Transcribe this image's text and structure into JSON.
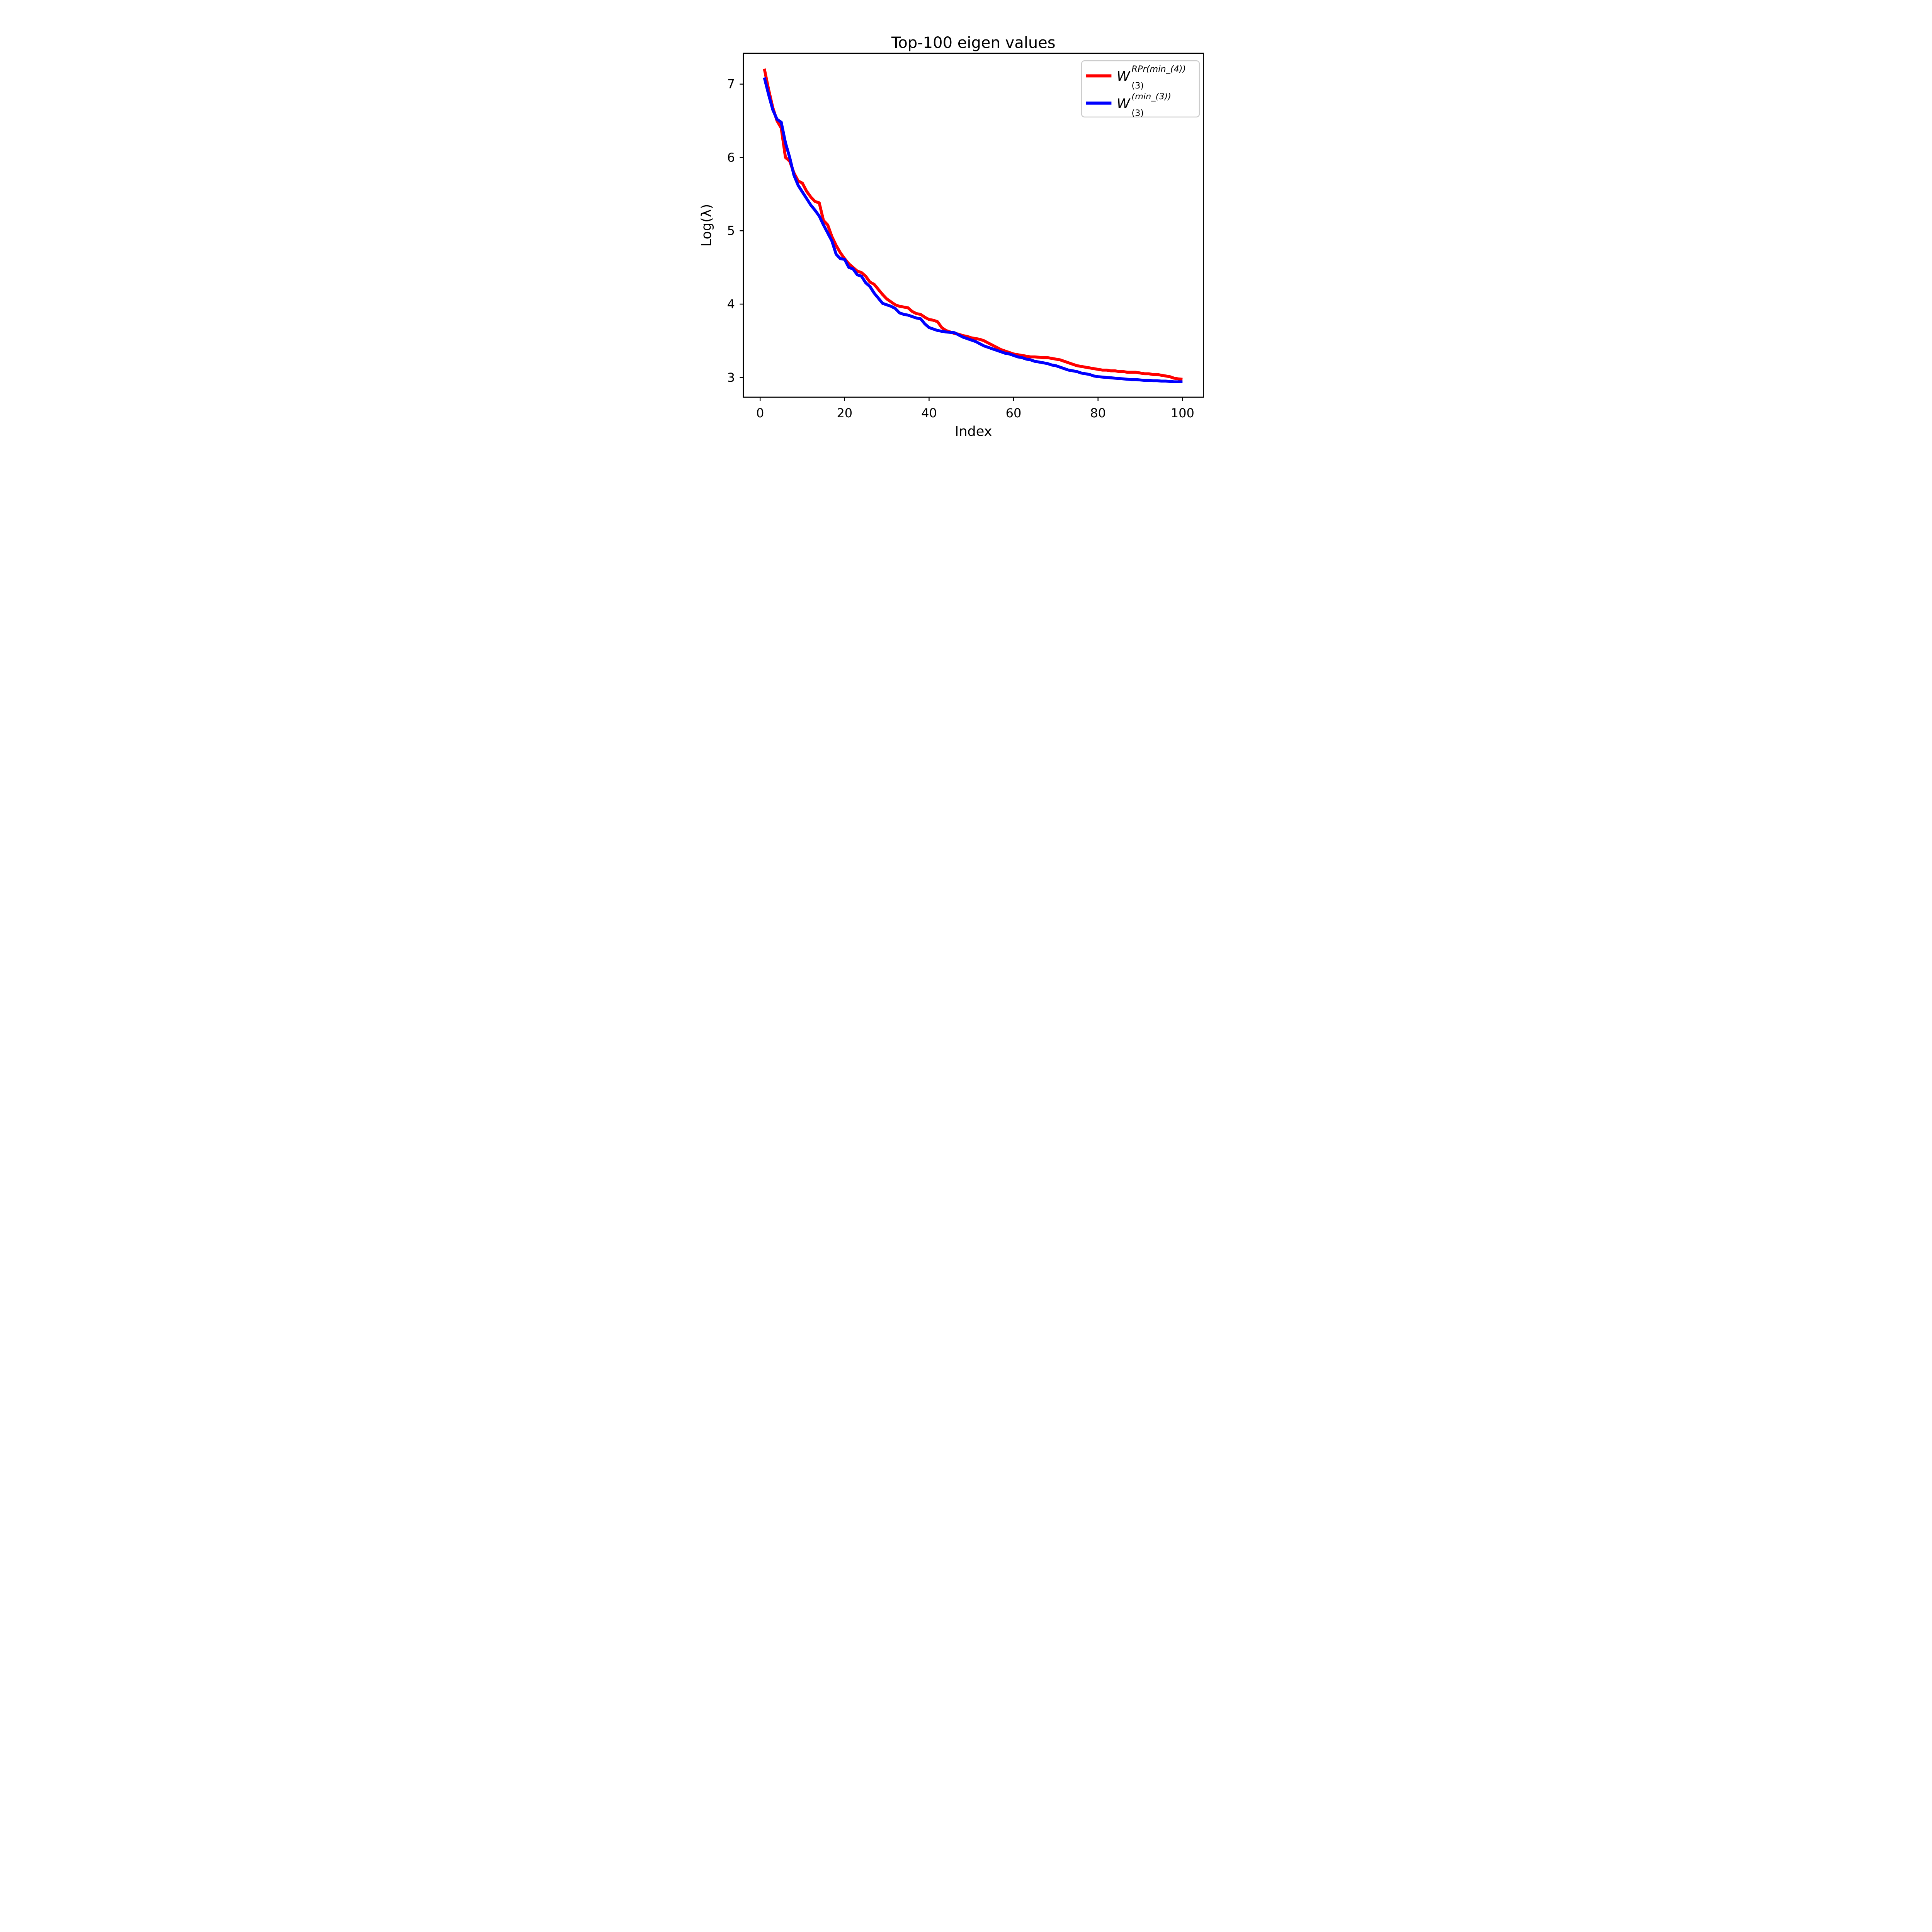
{
  "title": "Top-100 eigen values",
  "axes": {
    "x_label": "Index",
    "y_label": "Log(λ)",
    "x_ticks": [
      0,
      20,
      40,
      60,
      80,
      100
    ],
    "y_ticks": [
      3,
      4,
      5,
      6,
      7
    ]
  },
  "legend": {
    "entries": [
      {
        "base": "W",
        "sup": "RPr(min_(4))",
        "sub": "(3)",
        "color": "#ff0000"
      },
      {
        "base": "W",
        "sup": "(min_(3))",
        "sub": "(3)",
        "color": "#0000ff"
      }
    ]
  },
  "chart_data": {
    "type": "line",
    "title": "Top-100 eigen values",
    "xlabel": "Index",
    "ylabel": "Log(λ)",
    "xlim": [
      -3.95,
      104.95
    ],
    "ylim": [
      2.73,
      7.42
    ],
    "grid": false,
    "legend_position": "upper right",
    "x": [
      1,
      2,
      3,
      4,
      5,
      6,
      7,
      8,
      9,
      10,
      11,
      12,
      13,
      14,
      15,
      16,
      17,
      18,
      19,
      20,
      21,
      22,
      23,
      24,
      25,
      26,
      27,
      28,
      29,
      30,
      31,
      32,
      33,
      34,
      35,
      36,
      37,
      38,
      39,
      40,
      41,
      42,
      43,
      44,
      45,
      46,
      47,
      48,
      49,
      50,
      51,
      52,
      53,
      54,
      55,
      56,
      57,
      58,
      59,
      60,
      61,
      62,
      63,
      64,
      65,
      66,
      67,
      68,
      69,
      70,
      71,
      72,
      73,
      74,
      75,
      76,
      77,
      78,
      79,
      80,
      81,
      82,
      83,
      84,
      85,
      86,
      87,
      88,
      89,
      90,
      91,
      92,
      93,
      94,
      95,
      96,
      97,
      98,
      99,
      100
    ],
    "series": [
      {
        "name": "W_(3)^RPr(min_(4))",
        "color": "#ff0000",
        "values": [
          7.21,
          6.93,
          6.68,
          6.5,
          6.4,
          6.0,
          5.95,
          5.79,
          5.68,
          5.65,
          5.54,
          5.46,
          5.4,
          5.38,
          5.14,
          5.08,
          4.92,
          4.8,
          4.7,
          4.62,
          4.55,
          4.5,
          4.45,
          4.43,
          4.38,
          4.3,
          4.27,
          4.2,
          4.13,
          4.07,
          4.03,
          3.99,
          3.97,
          3.96,
          3.95,
          3.9,
          3.87,
          3.86,
          3.82,
          3.79,
          3.78,
          3.76,
          3.68,
          3.64,
          3.62,
          3.6,
          3.59,
          3.57,
          3.56,
          3.54,
          3.53,
          3.52,
          3.5,
          3.47,
          3.44,
          3.41,
          3.38,
          3.36,
          3.34,
          3.32,
          3.31,
          3.3,
          3.29,
          3.28,
          3.28,
          3.275,
          3.27,
          3.27,
          3.26,
          3.25,
          3.24,
          3.22,
          3.2,
          3.18,
          3.16,
          3.15,
          3.14,
          3.13,
          3.12,
          3.11,
          3.1,
          3.1,
          3.09,
          3.09,
          3.08,
          3.08,
          3.07,
          3.07,
          3.07,
          3.06,
          3.05,
          3.05,
          3.04,
          3.04,
          3.03,
          3.02,
          3.01,
          2.99,
          2.98,
          2.975
        ]
      },
      {
        "name": "W_(3)^(min_(3))",
        "color": "#0000ff",
        "values": [
          7.09,
          6.86,
          6.65,
          6.52,
          6.48,
          6.2,
          6.0,
          5.76,
          5.62,
          5.53,
          5.44,
          5.35,
          5.28,
          5.2,
          5.08,
          4.97,
          4.86,
          4.68,
          4.62,
          4.61,
          4.5,
          4.48,
          4.4,
          4.38,
          4.29,
          4.24,
          4.15,
          4.08,
          4.01,
          3.99,
          3.97,
          3.94,
          3.88,
          3.86,
          3.85,
          3.83,
          3.81,
          3.8,
          3.73,
          3.68,
          3.66,
          3.64,
          3.63,
          3.62,
          3.615,
          3.61,
          3.58,
          3.55,
          3.53,
          3.51,
          3.49,
          3.46,
          3.43,
          3.41,
          3.39,
          3.37,
          3.35,
          3.33,
          3.32,
          3.3,
          3.28,
          3.27,
          3.25,
          3.24,
          3.22,
          3.21,
          3.2,
          3.19,
          3.17,
          3.16,
          3.14,
          3.12,
          3.1,
          3.09,
          3.08,
          3.06,
          3.05,
          3.04,
          3.02,
          3.01,
          3.005,
          3.0,
          2.995,
          2.99,
          2.985,
          2.98,
          2.975,
          2.97,
          2.97,
          2.965,
          2.96,
          2.96,
          2.955,
          2.955,
          2.95,
          2.95,
          2.945,
          2.94,
          2.94,
          2.94
        ]
      }
    ]
  }
}
